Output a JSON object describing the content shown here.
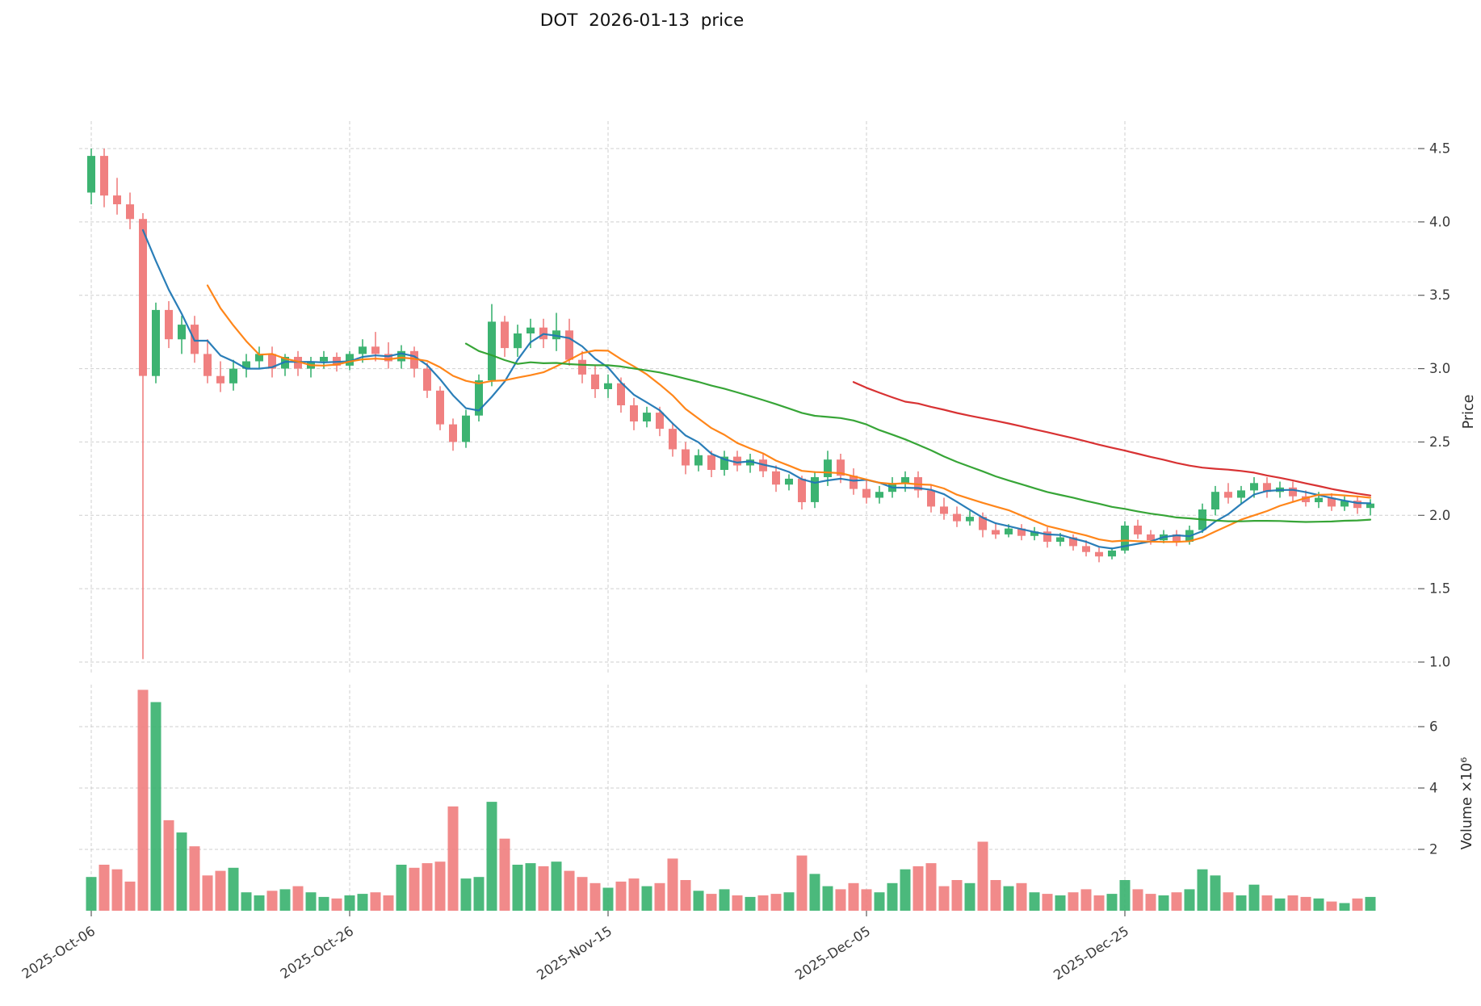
{
  "chart": {
    "title": "DOT  2026-01-13  price"
  },
  "chart_data": {
    "type": "candlestick",
    "title": "DOT  2026-01-13  price",
    "grid": true,
    "legend_position": "none",
    "price_axis": {
      "label": "Price",
      "side": "right",
      "ticks": [
        1.0,
        1.5,
        2.0,
        2.5,
        3.0,
        3.5,
        4.0,
        4.5
      ],
      "range": [
        0.85,
        4.72
      ]
    },
    "volume_axis": {
      "label": "Volume ×10⁶",
      "side": "right",
      "unit": 1000000,
      "ticks": [
        2,
        4,
        6
      ],
      "range": [
        0,
        7.35
      ]
    },
    "x_axis": {
      "tick_labels": [
        "2025-Oct-06",
        "2025-Oct-26",
        "2025-Nov-15",
        "2025-Dec-05",
        "2025-Dec-25"
      ],
      "tick_indices": [
        0,
        20,
        40,
        60,
        80
      ],
      "num_candles": 100
    },
    "moving_averages": [
      {
        "name": "MA5",
        "window": 5,
        "color": "#1f77b4"
      },
      {
        "name": "MA10",
        "window": 10,
        "color": "#ff7f0e"
      },
      {
        "name": "MA30",
        "window": 30,
        "color": "#2ca02c"
      },
      {
        "name": "MA60",
        "window": 60,
        "color": "#d62728"
      }
    ],
    "colors": {
      "up": "#3cb371",
      "down": "#f08080",
      "grid": "#cfcfcf",
      "text": "#3a3a3a",
      "background": "#ffffff"
    },
    "candles": {
      "ohlc": [
        [
          4.2,
          4.5,
          4.12,
          4.45
        ],
        [
          4.45,
          4.5,
          4.1,
          4.18
        ],
        [
          4.18,
          4.3,
          4.05,
          4.12
        ],
        [
          4.12,
          4.2,
          3.95,
          4.02
        ],
        [
          4.02,
          4.06,
          1.02,
          2.95
        ],
        [
          2.95,
          3.45,
          2.9,
          3.4
        ],
        [
          3.4,
          3.46,
          3.14,
          3.2
        ],
        [
          3.2,
          3.36,
          3.1,
          3.3
        ],
        [
          3.3,
          3.36,
          3.04,
          3.1
        ],
        [
          3.1,
          3.2,
          2.9,
          2.95
        ],
        [
          2.95,
          3.05,
          2.84,
          2.9
        ],
        [
          2.9,
          3.06,
          2.85,
          3.0
        ],
        [
          3.0,
          3.1,
          2.94,
          3.05
        ],
        [
          3.05,
          3.15,
          3.0,
          3.1
        ],
        [
          3.1,
          3.15,
          2.94,
          3.0
        ],
        [
          3.0,
          3.1,
          2.95,
          3.08
        ],
        [
          3.08,
          3.12,
          2.95,
          3.0
        ],
        [
          3.0,
          3.08,
          2.94,
          3.05
        ],
        [
          3.05,
          3.12,
          3.0,
          3.08
        ],
        [
          3.08,
          3.11,
          2.98,
          3.02
        ],
        [
          3.02,
          3.12,
          2.99,
          3.1
        ],
        [
          3.1,
          3.2,
          3.04,
          3.15
        ],
        [
          3.15,
          3.25,
          3.05,
          3.1
        ],
        [
          3.1,
          3.18,
          3.0,
          3.05
        ],
        [
          3.05,
          3.16,
          3.0,
          3.12
        ],
        [
          3.12,
          3.15,
          2.94,
          3.0
        ],
        [
          3.0,
          3.04,
          2.8,
          2.85
        ],
        [
          2.85,
          2.88,
          2.58,
          2.62
        ],
        [
          2.62,
          2.66,
          2.44,
          2.5
        ],
        [
          2.5,
          2.72,
          2.46,
          2.68
        ],
        [
          2.68,
          2.96,
          2.64,
          2.92
        ],
        [
          2.92,
          3.44,
          2.88,
          3.32
        ],
        [
          3.32,
          3.36,
          3.08,
          3.14
        ],
        [
          3.14,
          3.3,
          3.08,
          3.24
        ],
        [
          3.24,
          3.34,
          3.14,
          3.28
        ],
        [
          3.28,
          3.34,
          3.14,
          3.2
        ],
        [
          3.2,
          3.38,
          3.12,
          3.26
        ],
        [
          3.26,
          3.34,
          3.02,
          3.06
        ],
        [
          3.06,
          3.12,
          2.9,
          2.96
        ],
        [
          2.96,
          3.02,
          2.8,
          2.86
        ],
        [
          2.86,
          2.96,
          2.8,
          2.9
        ],
        [
          2.9,
          2.94,
          2.7,
          2.75
        ],
        [
          2.75,
          2.8,
          2.58,
          2.64
        ],
        [
          2.64,
          2.74,
          2.6,
          2.7
        ],
        [
          2.7,
          2.74,
          2.54,
          2.59
        ],
        [
          2.59,
          2.63,
          2.4,
          2.45
        ],
        [
          2.45,
          2.5,
          2.28,
          2.34
        ],
        [
          2.34,
          2.45,
          2.3,
          2.41
        ],
        [
          2.41,
          2.44,
          2.26,
          2.31
        ],
        [
          2.31,
          2.44,
          2.27,
          2.4
        ],
        [
          2.4,
          2.44,
          2.3,
          2.34
        ],
        [
          2.34,
          2.42,
          2.29,
          2.38
        ],
        [
          2.38,
          2.42,
          2.26,
          2.3
        ],
        [
          2.3,
          2.34,
          2.16,
          2.21
        ],
        [
          2.21,
          2.28,
          2.17,
          2.25
        ],
        [
          2.25,
          2.27,
          2.04,
          2.09
        ],
        [
          2.09,
          2.3,
          2.05,
          2.26
        ],
        [
          2.26,
          2.44,
          2.2,
          2.38
        ],
        [
          2.38,
          2.42,
          2.22,
          2.27
        ],
        [
          2.27,
          2.32,
          2.14,
          2.18
        ],
        [
          2.18,
          2.24,
          2.08,
          2.12
        ],
        [
          2.12,
          2.2,
          2.08,
          2.16
        ],
        [
          2.16,
          2.26,
          2.12,
          2.22
        ],
        [
          2.22,
          2.3,
          2.16,
          2.26
        ],
        [
          2.26,
          2.3,
          2.12,
          2.17
        ],
        [
          2.17,
          2.21,
          2.02,
          2.06
        ],
        [
          2.06,
          2.12,
          1.97,
          2.01
        ],
        [
          2.01,
          2.06,
          1.92,
          1.96
        ],
        [
          1.96,
          2.03,
          1.93,
          1.99
        ],
        [
          1.99,
          2.02,
          1.85,
          1.9
        ],
        [
          1.9,
          1.95,
          1.84,
          1.87
        ],
        [
          1.87,
          1.94,
          1.85,
          1.91
        ],
        [
          1.91,
          1.94,
          1.83,
          1.86
        ],
        [
          1.86,
          1.92,
          1.83,
          1.89
        ],
        [
          1.89,
          1.92,
          1.78,
          1.82
        ],
        [
          1.82,
          1.88,
          1.79,
          1.85
        ],
        [
          1.85,
          1.87,
          1.76,
          1.79
        ],
        [
          1.79,
          1.83,
          1.72,
          1.75
        ],
        [
          1.75,
          1.78,
          1.68,
          1.72
        ],
        [
          1.72,
          1.78,
          1.7,
          1.76
        ],
        [
          1.76,
          1.96,
          1.74,
          1.93
        ],
        [
          1.93,
          1.97,
          1.84,
          1.87
        ],
        [
          1.87,
          1.9,
          1.8,
          1.83
        ],
        [
          1.83,
          1.9,
          1.81,
          1.87
        ],
        [
          1.87,
          1.9,
          1.79,
          1.82
        ],
        [
          1.82,
          1.93,
          1.8,
          1.9
        ],
        [
          1.9,
          2.08,
          1.88,
          2.04
        ],
        [
          2.04,
          2.2,
          2.0,
          2.16
        ],
        [
          2.16,
          2.22,
          2.08,
          2.12
        ],
        [
          2.12,
          2.2,
          2.08,
          2.17
        ],
        [
          2.17,
          2.26,
          2.12,
          2.22
        ],
        [
          2.22,
          2.26,
          2.12,
          2.16
        ],
        [
          2.16,
          2.23,
          2.12,
          2.19
        ],
        [
          2.19,
          2.23,
          2.09,
          2.13
        ],
        [
          2.13,
          2.17,
          2.06,
          2.09
        ],
        [
          2.09,
          2.16,
          2.05,
          2.12
        ],
        [
          2.12,
          2.15,
          2.03,
          2.06
        ],
        [
          2.06,
          2.13,
          2.03,
          2.1
        ],
        [
          2.1,
          2.13,
          2.01,
          2.05
        ],
        [
          2.05,
          2.11,
          2.0,
          2.08
        ]
      ],
      "volume_millions": [
        1.1,
        1.5,
        1.35,
        0.95,
        7.2,
        6.8,
        2.95,
        2.55,
        2.1,
        1.15,
        1.3,
        1.4,
        0.6,
        0.5,
        0.65,
        0.7,
        0.8,
        0.6,
        0.45,
        0.4,
        0.5,
        0.55,
        0.6,
        0.5,
        1.5,
        1.4,
        1.55,
        1.6,
        3.4,
        1.05,
        1.1,
        3.55,
        2.35,
        1.5,
        1.55,
        1.45,
        1.6,
        1.3,
        1.1,
        0.9,
        0.75,
        0.95,
        1.05,
        0.8,
        0.9,
        1.7,
        1.0,
        0.65,
        0.55,
        0.7,
        0.5,
        0.45,
        0.5,
        0.55,
        0.6,
        1.8,
        1.2,
        0.8,
        0.7,
        0.9,
        0.7,
        0.6,
        0.9,
        1.35,
        1.45,
        1.55,
        0.8,
        1.0,
        0.9,
        2.25,
        1.0,
        0.8,
        0.9,
        0.6,
        0.55,
        0.5,
        0.6,
        0.7,
        0.5,
        0.55,
        1.0,
        0.7,
        0.55,
        0.5,
        0.6,
        0.7,
        1.35,
        1.15,
        0.6,
        0.5,
        0.85,
        0.5,
        0.4,
        0.5,
        0.45,
        0.4,
        0.3,
        0.25,
        0.4,
        0.45
      ]
    }
  }
}
